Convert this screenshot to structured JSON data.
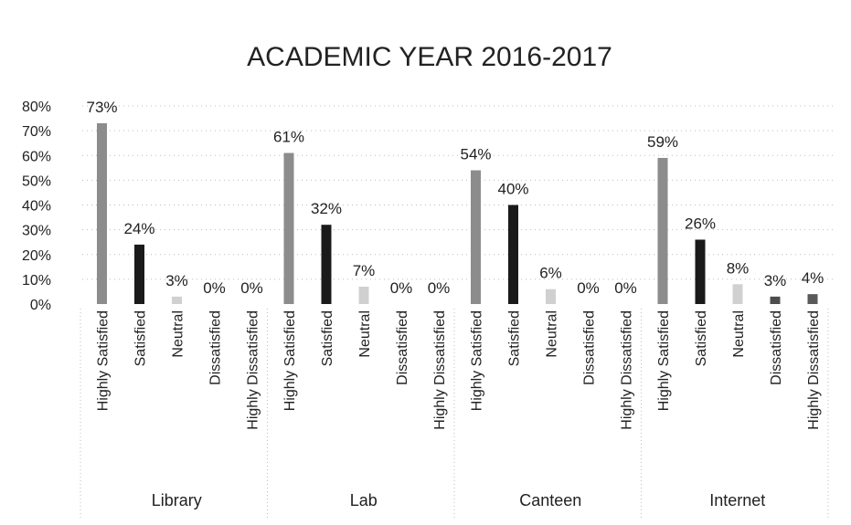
{
  "chart_data": {
    "type": "bar",
    "title": "ACADEMIC YEAR 2016-2017",
    "xlabel": "",
    "ylabel": "",
    "ylim": [
      0,
      80
    ],
    "y_ticks": [
      "0%",
      "10%",
      "20%",
      "30%",
      "40%",
      "50%",
      "60%",
      "70%",
      "80%"
    ],
    "grid": true,
    "legend": "none",
    "categories": [
      "Highly Satisfied",
      "Satisfied",
      "Neutral",
      "Dissatisfied",
      "Highly Dissatisfied"
    ],
    "groups": [
      {
        "name": "Library",
        "values": [
          73,
          24,
          3,
          0,
          0
        ],
        "labels": [
          "73%",
          "24%",
          "3%",
          "0%",
          "0%"
        ]
      },
      {
        "name": "Lab",
        "values": [
          61,
          32,
          7,
          0,
          0
        ],
        "labels": [
          "61%",
          "32%",
          "7%",
          "0%",
          "0%"
        ]
      },
      {
        "name": "Canteen",
        "values": [
          54,
          40,
          6,
          0,
          0
        ],
        "labels": [
          "54%",
          "40%",
          "6%",
          "0%",
          "0%"
        ]
      },
      {
        "name": "Internet",
        "values": [
          59,
          26,
          8,
          3,
          4
        ],
        "labels": [
          "59%",
          "26%",
          "8%",
          "3%",
          "4%"
        ]
      }
    ],
    "colors": {
      "Highly Satisfied": "#8c8c8c",
      "Satisfied": "#1a1a1a",
      "Neutral": "#d0d0d0",
      "Dissatisfied": "#4d4d4d",
      "Highly Dissatisfied": "#5a5a5a"
    }
  }
}
